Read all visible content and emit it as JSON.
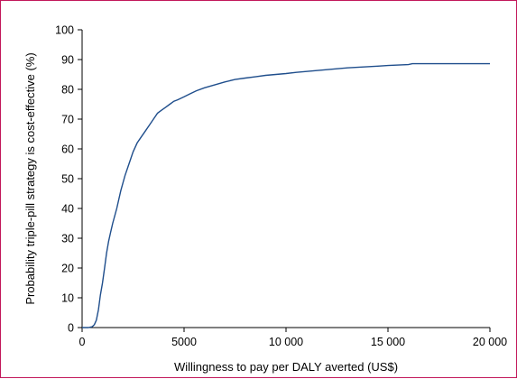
{
  "chart_data": {
    "type": "line",
    "title": "",
    "xlabel": "Willingness to pay per DALY averted (US$)",
    "ylabel": "Probability triple-pill strategy is cost-effective (%)",
    "xlim": [
      0,
      20000
    ],
    "ylim": [
      0,
      100
    ],
    "xticks": [
      0,
      5000,
      10000,
      15000,
      20000
    ],
    "xtick_labels": [
      "0",
      "5000",
      "10 000",
      "15 000",
      "20 000"
    ],
    "yticks": [
      0,
      10,
      20,
      30,
      40,
      50,
      60,
      70,
      80,
      90,
      100
    ],
    "ytick_labels": [
      "0",
      "10",
      "20",
      "30",
      "40",
      "50",
      "60",
      "70",
      "80",
      "90",
      "100"
    ],
    "grid": false,
    "legend": "none",
    "series": [
      {
        "color": "#1f4e8c",
        "x": [
          0,
          300,
          500,
          600,
          700,
          800,
          900,
          1000,
          1100,
          1200,
          1300,
          1400,
          1500,
          1700,
          1900,
          2100,
          2300,
          2500,
          2700,
          2900,
          3100,
          3300,
          3500,
          3700,
          3900,
          4100,
          4300,
          4500,
          4700,
          5000,
          5300,
          5600,
          6000,
          6500,
          7000,
          7500,
          8000,
          8500,
          9000,
          9500,
          10000,
          10500,
          11000,
          11500,
          12000,
          12500,
          13000,
          13500,
          14000,
          14500,
          15000,
          16000,
          16200,
          17000,
          18000,
          19000,
          20000
        ],
        "y": [
          0,
          0,
          0.3,
          1,
          2.5,
          6,
          11,
          15,
          20,
          25,
          29,
          32,
          35,
          40,
          46,
          51,
          55,
          59,
          62,
          64,
          66,
          68,
          70,
          72,
          73,
          74,
          75,
          76,
          76.5,
          77.5,
          78.5,
          79.5,
          80.5,
          81.5,
          82.5,
          83.3,
          83.8,
          84.2,
          84.7,
          85,
          85.3,
          85.7,
          86,
          86.3,
          86.6,
          86.9,
          87.2,
          87.4,
          87.6,
          87.8,
          88,
          88.3,
          88.6,
          88.6,
          88.6,
          88.6,
          88.6
        ]
      }
    ]
  }
}
